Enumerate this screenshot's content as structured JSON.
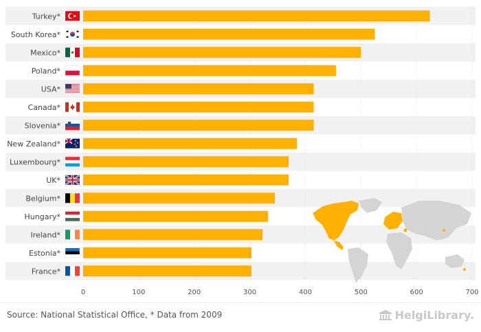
{
  "chart_data": {
    "type": "bar",
    "orientation": "horizontal",
    "categories": [
      "Turkey*",
      "South Korea*",
      "Mexico*",
      "Poland*",
      "USA*",
      "Canada*",
      "Slovenia*",
      "New Zealand*",
      "Luxembourg*",
      "UK*",
      "Belgium*",
      "Hungary*",
      "Ireland*",
      "Estonia*",
      "France*"
    ],
    "values": [
      624,
      525,
      500,
      455,
      415,
      415,
      415,
      385,
      370,
      370,
      345,
      333,
      323,
      303,
      303
    ],
    "xlim": [
      0,
      700
    ],
    "xticks": [
      0,
      100,
      200,
      300,
      400,
      500,
      600,
      700
    ],
    "title": "",
    "xlabel": "",
    "ylabel": "",
    "grid": true,
    "bar_color": "#ffb000"
  },
  "flags": {
    "Turkey*": "turkey-flag",
    "South Korea*": "south-korea-flag",
    "Mexico*": "mexico-flag",
    "Poland*": "poland-flag",
    "USA*": "usa-flag",
    "Canada*": "canada-flag",
    "Slovenia*": "slovenia-flag",
    "New Zealand*": "new-zealand-flag",
    "Luxembourg*": "luxembourg-flag",
    "UK*": "uk-flag",
    "Belgium*": "belgium-flag",
    "Hungary*": "hungary-flag",
    "Ireland*": "ireland-flag",
    "Estonia*": "estonia-flag",
    "France*": "france-flag"
  },
  "footer": {
    "source": "Source: National Statistical Office, * Data from 2009",
    "logo_text": "HelgiLibrary."
  },
  "colors": {
    "bar": "#ffb000",
    "stripe": "#f1f1f1",
    "map_land": "#d4d4d4",
    "map_highlight": "#ffb000"
  }
}
